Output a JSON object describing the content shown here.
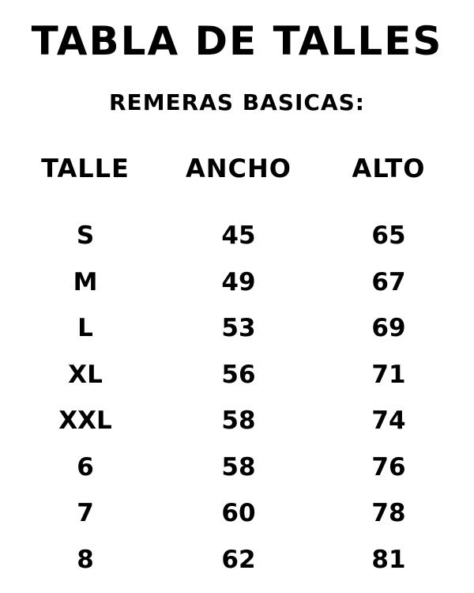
{
  "title": "TABLA DE TALLES",
  "subtitle": "REMERAS BASICAS:",
  "table": {
    "headers": [
      "TALLE",
      "ANCHO",
      "ALTO"
    ],
    "rows": [
      [
        "S",
        "45",
        "65"
      ],
      [
        "M",
        "49",
        "67"
      ],
      [
        "L",
        "53",
        "69"
      ],
      [
        "XL",
        "56",
        "71"
      ],
      [
        "XXL",
        "58",
        "74"
      ],
      [
        "6",
        "58",
        "76"
      ],
      [
        "7",
        "60",
        "78"
      ],
      [
        "8",
        "62",
        "81"
      ]
    ]
  }
}
